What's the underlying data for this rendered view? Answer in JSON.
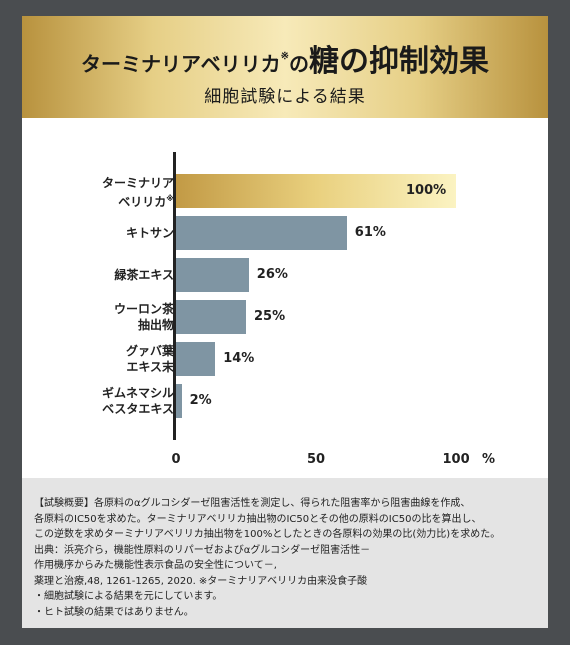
{
  "header": {
    "title_product": "ターミナリアベリリカ",
    "title_mark": "※",
    "title_no": "の",
    "title_main": "糖の抑制効果",
    "subtitle": "細胞試験による結果"
  },
  "chart_data": {
    "type": "bar",
    "orientation": "horizontal",
    "categories": [
      [
        "ターミナリア",
        "ベリリカ※"
      ],
      [
        "キトサン"
      ],
      [
        "緑茶エキス"
      ],
      [
        "ウーロン茶",
        "抽出物"
      ],
      [
        "グァバ葉",
        "エキス末"
      ],
      [
        "ギムネマシル",
        "ベスタエキス"
      ]
    ],
    "values": [
      100,
      61,
      26,
      25,
      14,
      2
    ],
    "value_labels": [
      "100%",
      "61%",
      "26%",
      "25%",
      "14%",
      "2%"
    ],
    "xlim": [
      0,
      100
    ],
    "xticks": [
      "0",
      "50",
      "100"
    ],
    "xunit": "%",
    "highlight_color": "#d9b461",
    "bar_color": "#7f95a3",
    "title": "",
    "xlabel": "",
    "ylabel": ""
  },
  "notes": [
    "【試験概要】各原料のαグルコシダーゼ阻害活性を測定し、得られた阻害率から阻害曲線を作成、",
    "各原料のIC50を求めた。ターミナリアベリリカ抽出物のIC50とその他の原料のIC50の比を算出し、",
    "この逆数を求めターミナリアベリリカ抽出物を100%としたときの各原料の効果の比(効力比)を求めた。",
    "出典：浜亮介ら，機能性原料のリパーゼおよびαグルコシダーゼ阻害活性－",
    "作用機序からみた機能性表示食品の安全性について－,",
    "薬理と治療,48, 1261-1265, 2020. ※ターミナリアベリリカ由来没食子酸",
    "・細胞試験による結果を元にしています。",
    "・ヒト試験の結果ではありません。"
  ]
}
